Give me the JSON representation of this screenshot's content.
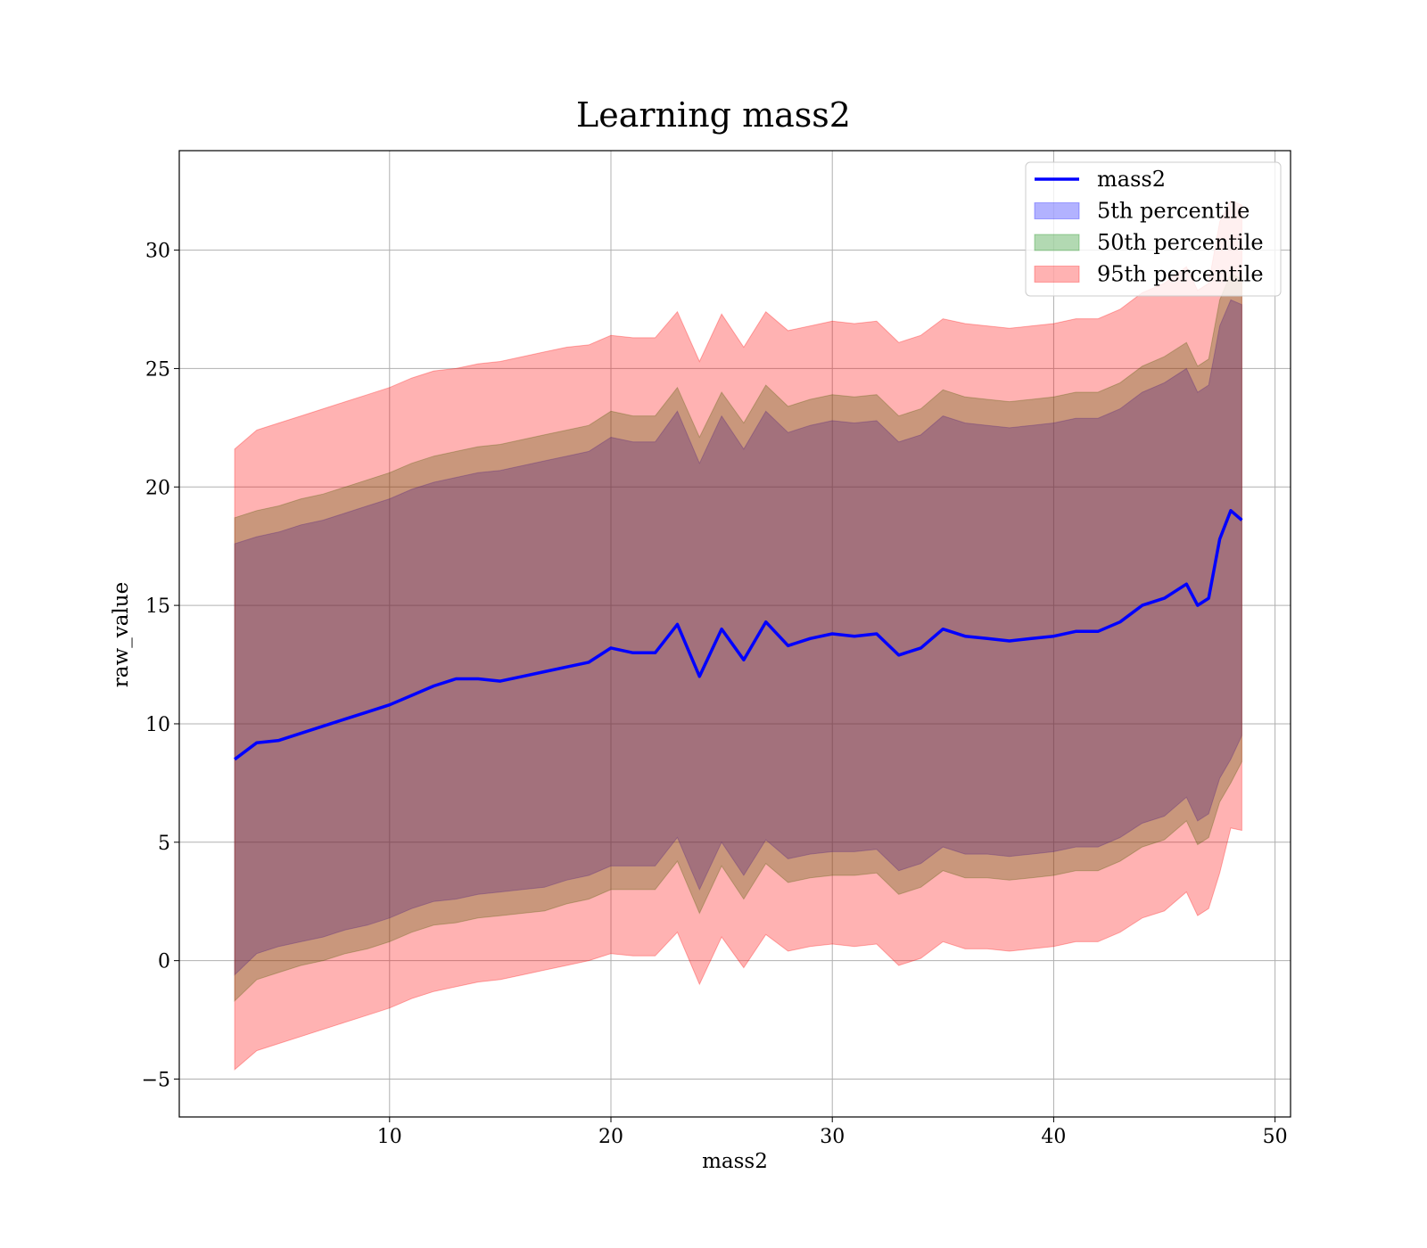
{
  "chart_data": {
    "type": "area",
    "title": "Learning mass2",
    "xlabel": "mass2",
    "ylabel": "raw_value",
    "xlim": [
      0.5,
      50.7
    ],
    "ylim": [
      -6.6,
      34.2
    ],
    "xticks": [
      10,
      20,
      30,
      40,
      50
    ],
    "yticks": [
      -5,
      0,
      5,
      10,
      15,
      20,
      25,
      30
    ],
    "grid": true,
    "legend_position": "top-right",
    "x": [
      3,
      4,
      5,
      6,
      7,
      8,
      9,
      10,
      11,
      12,
      13,
      14,
      15,
      16,
      17,
      18,
      19,
      20,
      21,
      22,
      23,
      24,
      25,
      26,
      27,
      28,
      29,
      30,
      31,
      32,
      33,
      34,
      35,
      36,
      37,
      38,
      39,
      40,
      41,
      42,
      43,
      44,
      45,
      46,
      46.5,
      47,
      47.5,
      48,
      48.5
    ],
    "series": [
      {
        "name": "mass2",
        "kind": "line",
        "color": "#0000ff",
        "values": [
          8.5,
          9.2,
          9.3,
          9.6,
          9.9,
          10.2,
          10.5,
          10.8,
          11.2,
          11.6,
          11.9,
          11.9,
          11.8,
          12.0,
          12.2,
          12.4,
          12.6,
          13.2,
          13.0,
          13.0,
          14.2,
          12.0,
          14.0,
          12.7,
          14.3,
          13.3,
          13.6,
          13.8,
          13.7,
          13.8,
          12.9,
          13.2,
          14.0,
          13.7,
          13.6,
          13.5,
          13.6,
          13.7,
          13.9,
          13.9,
          14.3,
          15.0,
          15.3,
          15.9,
          15.0,
          15.3,
          17.8,
          19.0,
          18.6
        ]
      },
      {
        "name": "5th percentile",
        "kind": "band",
        "color": "#0000ff",
        "lower": [
          -0.6,
          0.3,
          0.6,
          0.8,
          1.0,
          1.3,
          1.5,
          1.8,
          2.2,
          2.5,
          2.6,
          2.8,
          2.9,
          3.0,
          3.1,
          3.4,
          3.6,
          4.0,
          4.0,
          4.0,
          5.2,
          3.0,
          5.0,
          3.6,
          5.1,
          4.3,
          4.5,
          4.6,
          4.6,
          4.7,
          3.8,
          4.1,
          4.8,
          4.5,
          4.5,
          4.4,
          4.5,
          4.6,
          4.8,
          4.8,
          5.2,
          5.8,
          6.1,
          6.9,
          5.9,
          6.2,
          7.7,
          8.5,
          9.5
        ],
        "upper": [
          17.6,
          17.9,
          18.1,
          18.4,
          18.6,
          18.9,
          19.2,
          19.5,
          19.9,
          20.2,
          20.4,
          20.6,
          20.7,
          20.9,
          21.1,
          21.3,
          21.5,
          22.1,
          21.9,
          21.9,
          23.2,
          21.0,
          23.0,
          21.6,
          23.2,
          22.3,
          22.6,
          22.8,
          22.7,
          22.8,
          21.9,
          22.2,
          23.0,
          22.7,
          22.6,
          22.5,
          22.6,
          22.7,
          22.9,
          22.9,
          23.3,
          24.0,
          24.4,
          25.0,
          24.0,
          24.3,
          26.8,
          27.9,
          27.7
        ]
      },
      {
        "name": "50th percentile",
        "kind": "band",
        "color": "#008000",
        "lower": [
          -1.7,
          -0.8,
          -0.5,
          -0.2,
          0.0,
          0.3,
          0.5,
          0.8,
          1.2,
          1.5,
          1.6,
          1.8,
          1.9,
          2.0,
          2.1,
          2.4,
          2.6,
          3.0,
          3.0,
          3.0,
          4.2,
          2.0,
          4.0,
          2.6,
          4.1,
          3.3,
          3.5,
          3.6,
          3.6,
          3.7,
          2.8,
          3.1,
          3.8,
          3.5,
          3.5,
          3.4,
          3.5,
          3.6,
          3.8,
          3.8,
          4.2,
          4.8,
          5.1,
          5.9,
          4.9,
          5.2,
          6.7,
          7.5,
          8.4
        ],
        "upper": [
          18.7,
          19.0,
          19.2,
          19.5,
          19.7,
          20.0,
          20.3,
          20.6,
          21.0,
          21.3,
          21.5,
          21.7,
          21.8,
          22.0,
          22.2,
          22.4,
          22.6,
          23.2,
          23.0,
          23.0,
          24.2,
          22.1,
          24.0,
          22.7,
          24.3,
          23.4,
          23.7,
          23.9,
          23.8,
          23.9,
          23.0,
          23.3,
          24.1,
          23.8,
          23.7,
          23.6,
          23.7,
          23.8,
          24.0,
          24.0,
          24.4,
          25.1,
          25.5,
          26.1,
          25.1,
          25.4,
          27.9,
          29.0,
          28.8
        ]
      },
      {
        "name": "95th percentile",
        "kind": "band",
        "color": "#ff0000",
        "lower": [
          -4.6,
          -3.8,
          -3.5,
          -3.2,
          -2.9,
          -2.6,
          -2.3,
          -2.0,
          -1.6,
          -1.3,
          -1.1,
          -0.9,
          -0.8,
          -0.6,
          -0.4,
          -0.2,
          0.0,
          0.3,
          0.2,
          0.2,
          1.2,
          -1.0,
          1.0,
          -0.3,
          1.1,
          0.4,
          0.6,
          0.7,
          0.6,
          0.7,
          -0.2,
          0.1,
          0.8,
          0.5,
          0.5,
          0.4,
          0.5,
          0.6,
          0.8,
          0.8,
          1.2,
          1.8,
          2.1,
          2.9,
          1.9,
          2.2,
          3.7,
          5.6,
          5.5
        ],
        "upper": [
          21.6,
          22.4,
          22.7,
          23.0,
          23.3,
          23.6,
          23.9,
          24.2,
          24.6,
          24.9,
          25.0,
          25.2,
          25.3,
          25.5,
          25.7,
          25.9,
          26.0,
          26.4,
          26.3,
          26.3,
          27.4,
          25.3,
          27.3,
          25.9,
          27.4,
          26.6,
          26.8,
          27.0,
          26.9,
          27.0,
          26.1,
          26.4,
          27.1,
          26.9,
          26.8,
          26.7,
          26.8,
          26.9,
          27.1,
          27.1,
          27.5,
          28.2,
          28.6,
          29.3,
          28.3,
          28.6,
          31.2,
          32.1,
          31.9
        ]
      }
    ]
  },
  "legend": {
    "items": [
      {
        "label": "mass2",
        "kind": "line",
        "color": "#0000ff"
      },
      {
        "label": "5th percentile",
        "kind": "patch",
        "color": "#0000ff"
      },
      {
        "label": "50th percentile",
        "kind": "patch",
        "color": "#008000"
      },
      {
        "label": "95th percentile",
        "kind": "patch",
        "color": "#ff0000"
      }
    ]
  }
}
